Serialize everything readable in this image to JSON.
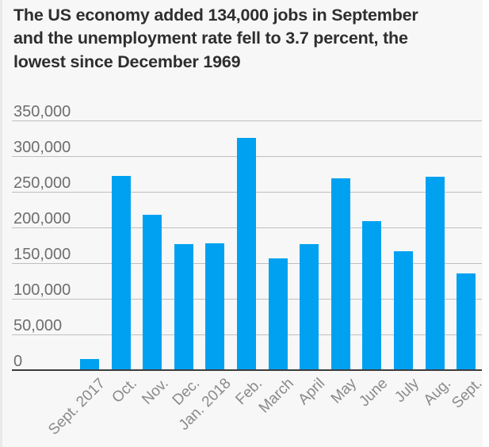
{
  "title_lines": [
    "The US economy added 134,000 jobs in September",
    "and the unemployment rate fell to 3.7 percent, the",
    "lowest since December 1969"
  ],
  "chart_data": {
    "type": "bar",
    "title": "The US economy added 134,000 jobs in September and the unemployment rate fell to 3.7 percent, the lowest since December 1969",
    "categories": [
      "Sept. 2017",
      "Oct.",
      "Nov.",
      "Dec.",
      "Jan. 2018",
      "Feb.",
      "March",
      "April",
      "May",
      "June",
      "July",
      "Aug.",
      "Sept."
    ],
    "values": [
      14000,
      271000,
      216000,
      175000,
      176000,
      324000,
      155000,
      175000,
      268000,
      208000,
      165000,
      270000,
      134000
    ],
    "xlabel": "",
    "ylabel": "",
    "ylim": [
      0,
      350000
    ],
    "y_ticks": [
      0,
      50000,
      100000,
      150000,
      200000,
      250000,
      300000,
      350000
    ],
    "y_tick_labels": [
      "0",
      "50,000",
      "100,000",
      "150,000",
      "200,000",
      "250,000",
      "300,000",
      "350,000"
    ],
    "grid": "horizontal",
    "legend": "none",
    "x_tick_rotation_deg": 45
  },
  "colors": {
    "background": "#f7f7f7",
    "bar": "#00a1f1",
    "gridline": "#bfbfbf",
    "baseline": "#3d3d3d",
    "title_text": "#2e2e2e",
    "y_tick_text": "#6e6e6e",
    "x_tick_text": "#8a8a8a",
    "left_edge": "#e9e9e9",
    "right_strip": "#ffffff"
  }
}
